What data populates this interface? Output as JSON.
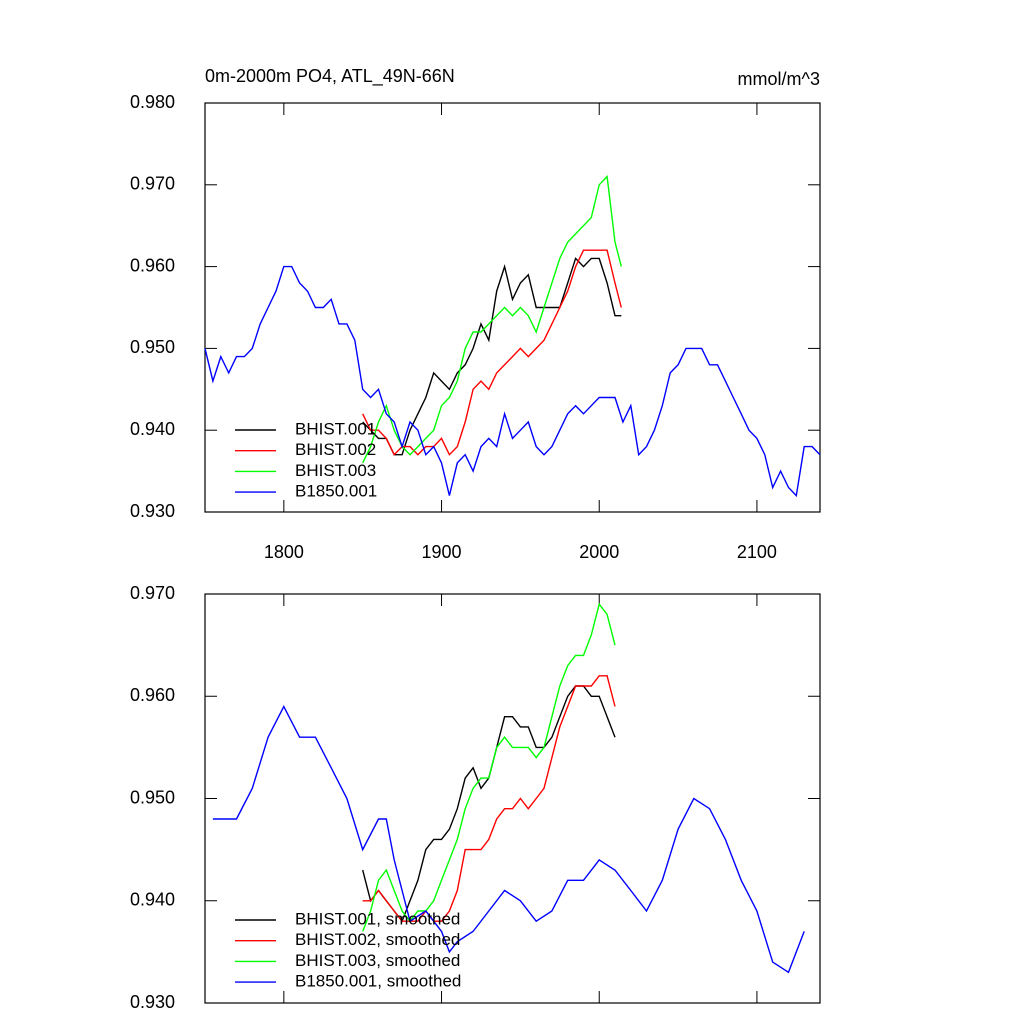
{
  "chart_data": [
    {
      "type": "line",
      "title": "0m-2000m PO4, ATL_49N-66N",
      "units": "mmol/m^3",
      "xlim": [
        1750,
        2140
      ],
      "xticks": [
        1800,
        1900,
        2000,
        2100
      ],
      "ylim": [
        0.93,
        0.98
      ],
      "yticks": [
        {
          "value": 0.93,
          "label": "0.930"
        },
        {
          "value": 0.94,
          "label": "0.940"
        },
        {
          "value": 0.95,
          "label": "0.950"
        },
        {
          "value": 0.96,
          "label": "0.960"
        },
        {
          "value": 0.97,
          "label": "0.970"
        },
        {
          "value": 0.98,
          "label": "0.980"
        }
      ],
      "legend": "lower left",
      "series": [
        {
          "name": "BHIST.001",
          "color": "#000000",
          "x": [
            1850,
            1855,
            1860,
            1865,
            1870,
            1875,
            1880,
            1885,
            1890,
            1895,
            1900,
            1905,
            1910,
            1915,
            1920,
            1925,
            1930,
            1935,
            1940,
            1945,
            1950,
            1955,
            1960,
            1965,
            1970,
            1975,
            1980,
            1985,
            1990,
            1995,
            2000,
            2005,
            2010,
            2014
          ],
          "values": [
            0.941,
            0.94,
            0.939,
            0.939,
            0.937,
            0.937,
            0.94,
            0.942,
            0.944,
            0.947,
            0.946,
            0.945,
            0.947,
            0.948,
            0.95,
            0.953,
            0.951,
            0.957,
            0.96,
            0.956,
            0.958,
            0.959,
            0.955,
            0.955,
            0.955,
            0.955,
            0.958,
            0.961,
            0.96,
            0.961,
            0.961,
            0.958,
            0.954,
            0.954
          ]
        },
        {
          "name": "BHIST.002",
          "color": "#ff0000",
          "x": [
            1850,
            1855,
            1860,
            1865,
            1870,
            1875,
            1880,
            1885,
            1890,
            1895,
            1900,
            1905,
            1910,
            1915,
            1920,
            1925,
            1930,
            1935,
            1940,
            1945,
            1950,
            1955,
            1960,
            1965,
            1970,
            1975,
            1980,
            1985,
            1990,
            1995,
            2000,
            2005,
            2010,
            2014
          ],
          "values": [
            0.942,
            0.94,
            0.94,
            0.939,
            0.937,
            0.938,
            0.938,
            0.937,
            0.938,
            0.938,
            0.939,
            0.937,
            0.938,
            0.941,
            0.945,
            0.946,
            0.945,
            0.947,
            0.948,
            0.949,
            0.95,
            0.949,
            0.95,
            0.951,
            0.953,
            0.955,
            0.957,
            0.96,
            0.962,
            0.962,
            0.962,
            0.962,
            0.958,
            0.955
          ]
        },
        {
          "name": "BHIST.003",
          "color": "#00ff00",
          "x": [
            1850,
            1855,
            1860,
            1865,
            1870,
            1875,
            1880,
            1885,
            1890,
            1895,
            1900,
            1905,
            1910,
            1915,
            1920,
            1925,
            1930,
            1935,
            1940,
            1945,
            1950,
            1955,
            1960,
            1965,
            1970,
            1975,
            1980,
            1985,
            1990,
            1995,
            2000,
            2005,
            2010,
            2014
          ],
          "values": [
            0.936,
            0.938,
            0.941,
            0.943,
            0.94,
            0.938,
            0.937,
            0.938,
            0.939,
            0.94,
            0.943,
            0.944,
            0.946,
            0.95,
            0.952,
            0.952,
            0.953,
            0.954,
            0.955,
            0.954,
            0.955,
            0.954,
            0.952,
            0.955,
            0.958,
            0.961,
            0.963,
            0.964,
            0.965,
            0.966,
            0.97,
            0.971,
            0.963,
            0.96
          ]
        },
        {
          "name": "B1850.001",
          "color": "#0000ff",
          "x": [
            1750,
            1755,
            1760,
            1765,
            1770,
            1775,
            1780,
            1785,
            1790,
            1795,
            1800,
            1805,
            1810,
            1815,
            1820,
            1825,
            1830,
            1835,
            1840,
            1845,
            1850,
            1855,
            1860,
            1865,
            1870,
            1875,
            1880,
            1885,
            1890,
            1895,
            1900,
            1905,
            1910,
            1915,
            1920,
            1925,
            1930,
            1935,
            1940,
            1945,
            1950,
            1955,
            1960,
            1965,
            1970,
            1975,
            1980,
            1985,
            1990,
            1995,
            2000,
            2005,
            2010,
            2015,
            2020,
            2025,
            2030,
            2035,
            2040,
            2045,
            2050,
            2055,
            2060,
            2065,
            2070,
            2075,
            2080,
            2085,
            2090,
            2095,
            2100,
            2105,
            2110,
            2115,
            2120,
            2125,
            2130,
            2135,
            2140
          ],
          "values": [
            0.95,
            0.946,
            0.949,
            0.947,
            0.949,
            0.949,
            0.95,
            0.953,
            0.955,
            0.957,
            0.96,
            0.96,
            0.958,
            0.957,
            0.955,
            0.955,
            0.956,
            0.953,
            0.953,
            0.951,
            0.945,
            0.944,
            0.945,
            0.942,
            0.941,
            0.938,
            0.941,
            0.94,
            0.937,
            0.938,
            0.936,
            0.932,
            0.936,
            0.937,
            0.935,
            0.938,
            0.939,
            0.938,
            0.942,
            0.939,
            0.94,
            0.941,
            0.938,
            0.937,
            0.938,
            0.94,
            0.942,
            0.943,
            0.942,
            0.943,
            0.944,
            0.944,
            0.944,
            0.941,
            0.943,
            0.937,
            0.938,
            0.94,
            0.943,
            0.947,
            0.948,
            0.95,
            0.95,
            0.95,
            0.948,
            0.948,
            0.946,
            0.944,
            0.942,
            0.94,
            0.939,
            0.937,
            0.933,
            0.935,
            0.933,
            0.932,
            0.938,
            0.938,
            0.937
          ]
        }
      ]
    },
    {
      "type": "line",
      "xlim": [
        1750,
        2140
      ],
      "xticks": [
        1800,
        1900,
        2000,
        2100
      ],
      "ylim": [
        0.93,
        0.97
      ],
      "yticks": [
        {
          "value": 0.93,
          "label": "0.930"
        },
        {
          "value": 0.94,
          "label": "0.940"
        },
        {
          "value": 0.95,
          "label": "0.950"
        },
        {
          "value": 0.96,
          "label": "0.960"
        },
        {
          "value": 0.97,
          "label": "0.970"
        }
      ],
      "legend": "lower left",
      "series": [
        {
          "name": "BHIST.001, smoothed",
          "color": "#000000",
          "x": [
            1850,
            1855,
            1860,
            1865,
            1870,
            1875,
            1880,
            1885,
            1890,
            1895,
            1900,
            1905,
            1910,
            1915,
            1920,
            1925,
            1930,
            1935,
            1940,
            1945,
            1950,
            1955,
            1960,
            1965,
            1970,
            1975,
            1980,
            1985,
            1990,
            1995,
            2000,
            2005,
            2010
          ],
          "values": [
            0.943,
            0.94,
            0.941,
            0.94,
            0.939,
            0.938,
            0.94,
            0.942,
            0.945,
            0.946,
            0.946,
            0.947,
            0.949,
            0.952,
            0.953,
            0.951,
            0.952,
            0.955,
            0.958,
            0.958,
            0.957,
            0.957,
            0.955,
            0.955,
            0.956,
            0.958,
            0.96,
            0.961,
            0.961,
            0.96,
            0.96,
            0.958,
            0.956
          ]
        },
        {
          "name": "BHIST.002, smoothed",
          "color": "#ff0000",
          "x": [
            1850,
            1855,
            1860,
            1865,
            1870,
            1875,
            1880,
            1885,
            1890,
            1895,
            1900,
            1905,
            1910,
            1915,
            1920,
            1925,
            1930,
            1935,
            1940,
            1945,
            1950,
            1955,
            1960,
            1965,
            1970,
            1975,
            1980,
            1985,
            1990,
            1995,
            2000,
            2005,
            2010
          ],
          "values": [
            0.94,
            0.94,
            0.941,
            0.94,
            0.939,
            0.938,
            0.938,
            0.938,
            0.939,
            0.938,
            0.938,
            0.939,
            0.941,
            0.945,
            0.945,
            0.945,
            0.946,
            0.948,
            0.949,
            0.949,
            0.95,
            0.949,
            0.95,
            0.951,
            0.954,
            0.957,
            0.959,
            0.961,
            0.961,
            0.961,
            0.962,
            0.962,
            0.959
          ]
        },
        {
          "name": "BHIST.003, smoothed",
          "color": "#00ff00",
          "x": [
            1850,
            1855,
            1860,
            1865,
            1870,
            1875,
            1880,
            1885,
            1890,
            1895,
            1900,
            1905,
            1910,
            1915,
            1920,
            1925,
            1930,
            1935,
            1940,
            1945,
            1950,
            1955,
            1960,
            1965,
            1970,
            1975,
            1980,
            1985,
            1990,
            1995,
            2000,
            2005,
            2010
          ],
          "values": [
            0.937,
            0.939,
            0.942,
            0.943,
            0.941,
            0.939,
            0.938,
            0.939,
            0.939,
            0.94,
            0.942,
            0.944,
            0.946,
            0.949,
            0.951,
            0.952,
            0.952,
            0.955,
            0.956,
            0.955,
            0.955,
            0.955,
            0.954,
            0.955,
            0.958,
            0.961,
            0.963,
            0.964,
            0.964,
            0.966,
            0.969,
            0.968,
            0.965
          ]
        },
        {
          "name": "B1850.001, smoothed",
          "color": "#0000ff",
          "x": [
            1755,
            1760,
            1770,
            1780,
            1790,
            1800,
            1810,
            1820,
            1830,
            1840,
            1850,
            1860,
            1865,
            1870,
            1875,
            1880,
            1890,
            1900,
            1905,
            1910,
            1920,
            1930,
            1940,
            1950,
            1960,
            1970,
            1980,
            1990,
            2000,
            2010,
            2020,
            2025,
            2030,
            2040,
            2050,
            2060,
            2070,
            2080,
            2090,
            2100,
            2110,
            2120,
            2130
          ],
          "values": [
            0.948,
            0.948,
            0.948,
            0.951,
            0.956,
            0.959,
            0.956,
            0.956,
            0.953,
            0.95,
            0.945,
            0.948,
            0.948,
            0.944,
            0.941,
            0.938,
            0.939,
            0.937,
            0.935,
            0.936,
            0.937,
            0.939,
            0.941,
            0.94,
            0.938,
            0.939,
            0.942,
            0.942,
            0.944,
            0.943,
            0.941,
            0.94,
            0.939,
            0.942,
            0.947,
            0.95,
            0.949,
            0.946,
            0.942,
            0.939,
            0.934,
            0.933,
            0.937
          ]
        }
      ]
    }
  ]
}
